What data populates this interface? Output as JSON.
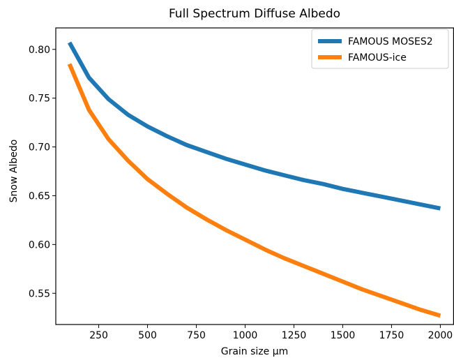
{
  "chart_data": {
    "type": "line",
    "title": "Full Spectrum Diffuse Albedo",
    "xlabel": "Grain size μm",
    "ylabel": "Snow Albedo",
    "xlim": [
      30,
      2070
    ],
    "ylim": [
      0.518,
      0.822
    ],
    "xticks": [
      250,
      500,
      750,
      1000,
      1250,
      1500,
      1750,
      2000
    ],
    "yticks": [
      0.55,
      0.6,
      0.65,
      0.7,
      0.75,
      0.8
    ],
    "grid": false,
    "legend_position": "top-right",
    "x": [
      100,
      200,
      300,
      400,
      500,
      600,
      700,
      800,
      900,
      1000,
      1100,
      1200,
      1300,
      1400,
      1500,
      1600,
      1700,
      1800,
      1900,
      2000
    ],
    "series": [
      {
        "name": "FAMOUS MOSES2",
        "color": "#1f77b4",
        "values": [
          0.807,
          0.771,
          0.749,
          0.733,
          0.721,
          0.711,
          0.702,
          0.695,
          0.688,
          0.682,
          0.676,
          0.671,
          0.666,
          0.662,
          0.657,
          0.653,
          0.649,
          0.645,
          0.641,
          0.637
        ]
      },
      {
        "name": "FAMOUS-ice",
        "color": "#ff7f0e",
        "values": [
          0.785,
          0.738,
          0.708,
          0.686,
          0.667,
          0.652,
          0.638,
          0.626,
          0.615,
          0.605,
          0.595,
          0.586,
          0.578,
          0.57,
          0.562,
          0.554,
          0.547,
          0.54,
          0.533,
          0.527
        ]
      }
    ]
  }
}
